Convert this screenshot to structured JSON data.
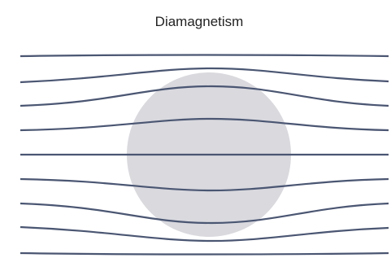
{
  "title": "Diamagnetism"
}
